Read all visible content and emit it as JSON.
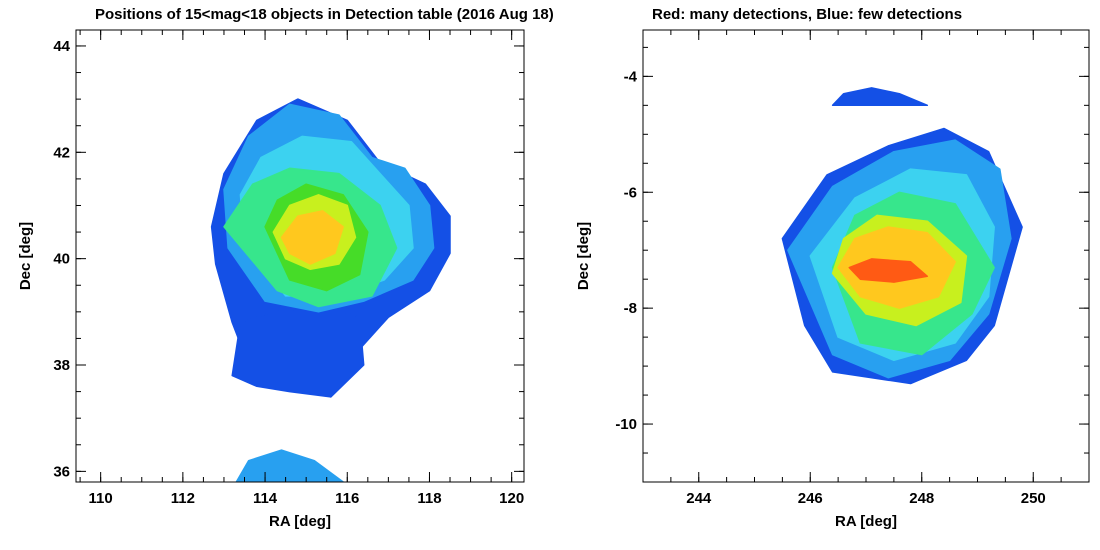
{
  "titles": {
    "left": "Positions of 15<mag<18 objects in Detection table (2016 Aug 18)",
    "right": "Red: many detections, Blue: few detections"
  },
  "colors": {
    "few": "#1450e6",
    "low": "#28a0f0",
    "mid_low": "#3cd2f0",
    "mid": "#37e68c",
    "mid_high": "#46dc28",
    "high": "#c8f01e",
    "very_high": "#ffc81e",
    "many": "#ff5a14",
    "max": "#e61e0a"
  },
  "chart_data": [
    {
      "type": "scatter",
      "title": "Positions of 15<mag<18 objects in Detection table (2016 Aug 18)",
      "xlabel": "RA [deg]",
      "ylabel": "Dec [deg]",
      "xlim": [
        109.4,
        120.3
      ],
      "ylim": [
        35.8,
        44.3
      ],
      "xticks": [
        110,
        112,
        114,
        116,
        118,
        120
      ],
      "yticks": [
        36,
        38,
        40,
        42,
        44
      ],
      "grid": false,
      "color_encoding": "detection count (red: many, blue: few)",
      "regions": [
        {
          "level": "few",
          "polygon": [
            [
              112.8,
              39.9
            ],
            [
              112.7,
              40.6
            ],
            [
              113.0,
              41.6
            ],
            [
              113.8,
              42.6
            ],
            [
              114.8,
              43.0
            ],
            [
              116.0,
              42.6
            ],
            [
              116.8,
              41.8
            ],
            [
              117.9,
              41.4
            ],
            [
              118.5,
              40.8
            ],
            [
              118.5,
              40.1
            ],
            [
              118.0,
              39.4
            ],
            [
              117.0,
              38.9
            ],
            [
              116.3,
              38.3
            ],
            [
              115.6,
              37.4
            ],
            [
              114.6,
              37.8
            ],
            [
              113.5,
              38.2
            ],
            [
              113.2,
              38.8
            ],
            [
              112.8,
              39.9
            ]
          ]
        },
        {
          "level": "few",
          "polygon": [
            [
              113.4,
              38.8
            ],
            [
              113.2,
              37.8
            ],
            [
              113.8,
              37.6
            ],
            [
              114.6,
              37.5
            ],
            [
              115.6,
              37.4
            ],
            [
              116.4,
              38.0
            ],
            [
              116.3,
              38.9
            ],
            [
              115.5,
              39.1
            ],
            [
              114.2,
              39.0
            ],
            [
              113.4,
              38.8
            ]
          ]
        },
        {
          "level": "low",
          "polygon": [
            [
              113.1,
              40.2
            ],
            [
              113.0,
              41.3
            ],
            [
              113.6,
              42.3
            ],
            [
              114.6,
              42.9
            ],
            [
              115.8,
              42.7
            ],
            [
              116.6,
              41.9
            ],
            [
              117.4,
              41.7
            ],
            [
              118.0,
              41.0
            ],
            [
              118.1,
              40.2
            ],
            [
              117.6,
              39.6
            ],
            [
              116.4,
              39.2
            ],
            [
              115.3,
              39.0
            ],
            [
              114.0,
              39.2
            ],
            [
              113.1,
              40.2
            ]
          ]
        },
        {
          "level": "mid_low",
          "polygon": [
            [
              113.5,
              40.3
            ],
            [
              113.4,
              41.2
            ],
            [
              113.9,
              41.9
            ],
            [
              114.9,
              42.3
            ],
            [
              116.1,
              42.2
            ],
            [
              116.8,
              41.6
            ],
            [
              117.5,
              41.0
            ],
            [
              117.6,
              40.2
            ],
            [
              116.9,
              39.6
            ],
            [
              115.8,
              39.3
            ],
            [
              114.5,
              39.3
            ],
            [
              113.5,
              40.3
            ]
          ]
        },
        {
          "level": "mid",
          "polygon": [
            [
              113.0,
              40.6
            ],
            [
              113.7,
              41.4
            ],
            [
              114.6,
              41.7
            ],
            [
              115.8,
              41.6
            ],
            [
              116.8,
              41.0
            ],
            [
              117.2,
              40.2
            ],
            [
              116.6,
              39.3
            ],
            [
              115.3,
              39.1
            ],
            [
              114.3,
              39.4
            ],
            [
              113.0,
              40.6
            ]
          ]
        },
        {
          "level": "mid_high",
          "polygon": [
            [
              114.0,
              40.6
            ],
            [
              114.3,
              41.1
            ],
            [
              115.0,
              41.4
            ],
            [
              115.9,
              41.2
            ],
            [
              116.5,
              40.5
            ],
            [
              116.3,
              39.7
            ],
            [
              115.5,
              39.4
            ],
            [
              114.6,
              39.6
            ],
            [
              114.0,
              40.6
            ]
          ]
        },
        {
          "level": "high",
          "polygon": [
            [
              114.2,
              40.5
            ],
            [
              114.6,
              41.0
            ],
            [
              115.3,
              41.2
            ],
            [
              116.0,
              41.0
            ],
            [
              116.2,
              40.4
            ],
            [
              115.8,
              39.9
            ],
            [
              115.1,
              39.8
            ],
            [
              114.5,
              40.0
            ],
            [
              114.2,
              40.5
            ]
          ]
        },
        {
          "level": "very_high",
          "polygon": [
            [
              114.4,
              40.4
            ],
            [
              114.8,
              40.8
            ],
            [
              115.4,
              40.9
            ],
            [
              115.9,
              40.6
            ],
            [
              115.7,
              40.1
            ],
            [
              115.1,
              39.9
            ],
            [
              114.6,
              40.1
            ],
            [
              114.4,
              40.4
            ]
          ]
        },
        {
          "level": "low",
          "polygon": [
            [
              113.3,
              35.8
            ],
            [
              113.6,
              36.2
            ],
            [
              114.4,
              36.4
            ],
            [
              115.2,
              36.2
            ],
            [
              115.9,
              35.8
            ],
            [
              113.3,
              35.8
            ]
          ]
        }
      ]
    },
    {
      "type": "scatter",
      "title": "Red: many detections, Blue: few detections",
      "xlabel": "RA [deg]",
      "ylabel": "Dec [deg]",
      "xlim": [
        243.0,
        251.0
      ],
      "ylim": [
        -11.0,
        -3.2
      ],
      "xticks": [
        244,
        246,
        248,
        250
      ],
      "yticks": [
        -4,
        -6,
        -8,
        -10
      ],
      "grid": false,
      "color_encoding": "detection count (red: many, blue: few)",
      "regions": [
        {
          "level": "few",
          "polygon": [
            [
              246.4,
              -4.5
            ],
            [
              246.6,
              -4.3
            ],
            [
              247.1,
              -4.2
            ],
            [
              247.6,
              -4.3
            ],
            [
              248.1,
              -4.5
            ],
            [
              246.4,
              -4.5
            ]
          ]
        },
        {
          "level": "few",
          "polygon": [
            [
              245.5,
              -6.8
            ],
            [
              246.3,
              -5.7
            ],
            [
              247.4,
              -5.2
            ],
            [
              248.4,
              -4.9
            ],
            [
              249.2,
              -5.3
            ],
            [
              249.8,
              -6.6
            ],
            [
              249.3,
              -8.3
            ],
            [
              248.8,
              -8.9
            ],
            [
              247.8,
              -9.3
            ],
            [
              246.4,
              -9.1
            ],
            [
              245.9,
              -8.3
            ],
            [
              245.5,
              -6.8
            ]
          ]
        },
        {
          "level": "low",
          "polygon": [
            [
              245.6,
              -7.0
            ],
            [
              246.4,
              -5.9
            ],
            [
              247.5,
              -5.3
            ],
            [
              248.6,
              -5.1
            ],
            [
              249.4,
              -5.6
            ],
            [
              249.6,
              -6.8
            ],
            [
              249.2,
              -8.1
            ],
            [
              248.5,
              -8.9
            ],
            [
              247.4,
              -9.2
            ],
            [
              246.4,
              -8.8
            ],
            [
              246.0,
              -7.9
            ],
            [
              245.6,
              -7.0
            ]
          ]
        },
        {
          "level": "mid_low",
          "polygon": [
            [
              246.0,
              -7.1
            ],
            [
              246.8,
              -6.1
            ],
            [
              247.8,
              -5.6
            ],
            [
              248.8,
              -5.7
            ],
            [
              249.3,
              -6.6
            ],
            [
              249.2,
              -7.8
            ],
            [
              248.6,
              -8.6
            ],
            [
              247.5,
              -8.9
            ],
            [
              246.5,
              -8.5
            ],
            [
              246.0,
              -7.1
            ]
          ]
        },
        {
          "level": "mid",
          "polygon": [
            [
              246.4,
              -7.3
            ],
            [
              246.8,
              -6.4
            ],
            [
              247.6,
              -6.0
            ],
            [
              248.6,
              -6.2
            ],
            [
              249.3,
              -7.3
            ],
            [
              248.9,
              -8.1
            ],
            [
              248.0,
              -8.8
            ],
            [
              246.9,
              -8.6
            ],
            [
              246.4,
              -7.3
            ]
          ]
        },
        {
          "level": "high",
          "polygon": [
            [
              246.4,
              -7.4
            ],
            [
              246.6,
              -6.8
            ],
            [
              247.2,
              -6.4
            ],
            [
              248.1,
              -6.5
            ],
            [
              248.8,
              -7.1
            ],
            [
              248.7,
              -7.9
            ],
            [
              247.9,
              -8.3
            ],
            [
              247.0,
              -8.1
            ],
            [
              246.4,
              -7.4
            ]
          ]
        },
        {
          "level": "very_high",
          "polygon": [
            [
              246.5,
              -7.3
            ],
            [
              246.8,
              -6.8
            ],
            [
              247.4,
              -6.6
            ],
            [
              248.1,
              -6.7
            ],
            [
              248.6,
              -7.2
            ],
            [
              248.3,
              -7.8
            ],
            [
              247.6,
              -8.0
            ],
            [
              246.9,
              -7.8
            ],
            [
              246.5,
              -7.3
            ]
          ]
        },
        {
          "level": "many",
          "polygon": [
            [
              246.7,
              -7.3
            ],
            [
              247.1,
              -7.15
            ],
            [
              247.8,
              -7.2
            ],
            [
              248.1,
              -7.45
            ],
            [
              247.5,
              -7.55
            ],
            [
              246.9,
              -7.5
            ],
            [
              246.7,
              -7.3
            ]
          ]
        }
      ]
    }
  ]
}
